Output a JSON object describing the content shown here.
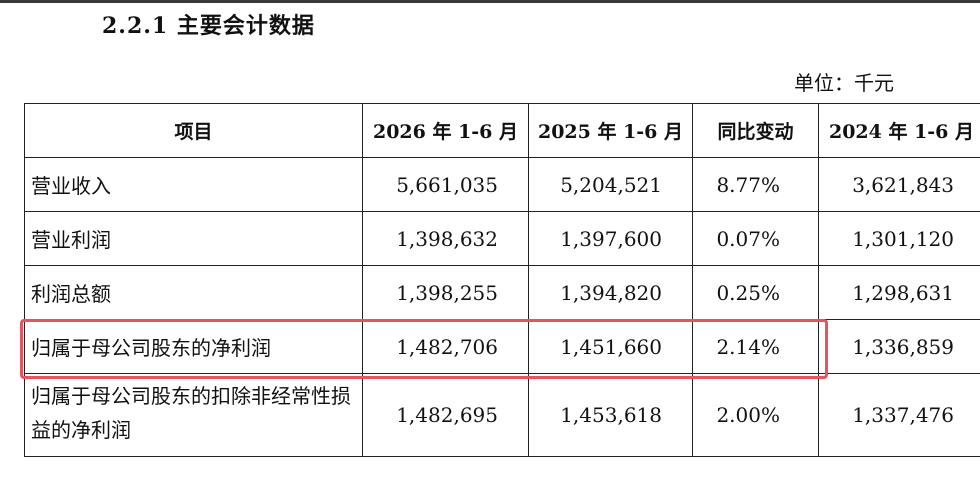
{
  "section_title": "2.2.1 主要会计数据",
  "unit_label": "单位：千元",
  "table": {
    "headers": [
      "项目",
      "2026 年 1-6 月",
      "2025 年 1-6 月",
      "同比变动",
      "2024 年 1-6 月"
    ],
    "rows": [
      {
        "item": "营业收入",
        "v2026": "5,661,035",
        "v2025": "5,204,521",
        "yoy": "8.77%",
        "v2024": "3,621,843"
      },
      {
        "item": "营业利润",
        "v2026": "1,398,632",
        "v2025": "1,397,600",
        "yoy": "0.07%",
        "v2024": "1,301,120"
      },
      {
        "item": "利润总额",
        "v2026": "1,398,255",
        "v2025": "1,394,820",
        "yoy": "0.25%",
        "v2024": "1,298,631"
      },
      {
        "item": "归属于母公司股东的净利润",
        "v2026": "1,482,706",
        "v2025": "1,451,660",
        "yoy": "2.14%",
        "v2024": "1,336,859"
      },
      {
        "item": "归属于母公司股东的扣除非经常性损益的净利润",
        "v2026": "1,482,695",
        "v2025": "1,453,618",
        "yoy": "2.00%",
        "v2024": "1,337,476"
      }
    ]
  },
  "highlight_color": "#e8545d"
}
